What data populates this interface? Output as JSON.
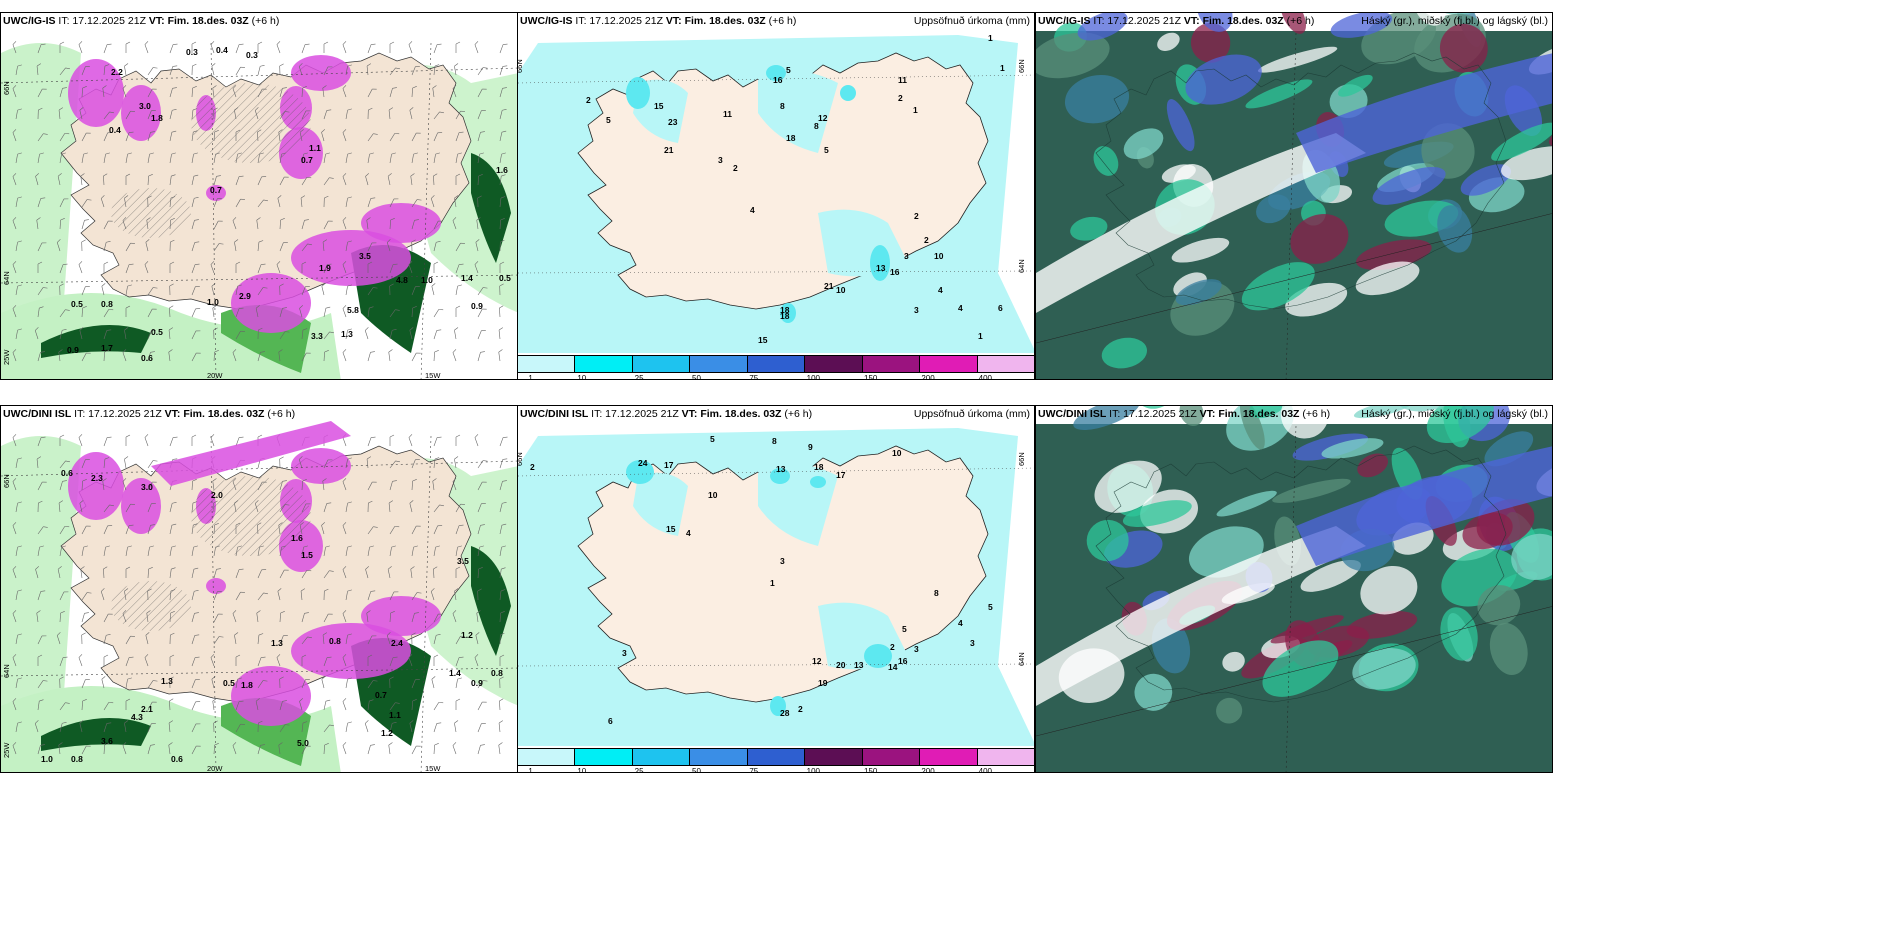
{
  "panels": {
    "p1": {
      "model": "UWC/IG-IS",
      "it": "IT: 17.12.2025 21Z",
      "vt": "VT: Fim. 18.des. 03Z",
      "step": "(+6 h)"
    },
    "p2": {
      "model": "UWC/IG-IS",
      "it": "IT: 17.12.2025 21Z",
      "vt": "VT: Fim. 18.des. 03Z",
      "step": "(+6 h)",
      "right": "Uppsöfnuð úrkoma (mm)"
    },
    "p3": {
      "model": "UWC/IG-IS",
      "it": "IT: 17.12.2025 21Z",
      "vt": "VT: Fim. 18.des. 03Z",
      "step": "(+6 h)",
      "right": "Háský (gr.), miðský (fj.bl.) og lágský (bl.)"
    },
    "p4": {
      "model": "UWC/DINI ISL",
      "it": "IT: 17.12.2025 21Z",
      "vt": "VT: Fim. 18.des. 03Z",
      "step": "(+6 h)"
    },
    "p5": {
      "model": "UWC/DINI ISL",
      "it": "IT: 17.12.2025 21Z",
      "vt": "VT: Fim. 18.des. 03Z",
      "step": "(+6 h)",
      "right": "Uppsöfnuð úrkoma (mm)"
    },
    "p6": {
      "model": "UWC/DINI ISL",
      "it": "IT: 17.12.2025 21Z",
      "vt": "VT: Fim. 18.des. 03Z",
      "step": "(+6 h)",
      "right": "Háský (gr.), miðský (fj.bl.) og lágský (bl.)"
    }
  },
  "axes": {
    "lat66": "66N",
    "lat64": "64N",
    "lon25": "25W",
    "lon20": "20W",
    "lon15": "15W"
  },
  "colorbar": {
    "ticks": [
      "1",
      "10",
      "25",
      "50",
      "75",
      "100",
      "150",
      "200",
      "400"
    ],
    "colors": [
      "#c8f7fa",
      "#00eef5",
      "#1ec3ef",
      "#3a8ee6",
      "#2e5fd0",
      "#5c0e54",
      "#9b137f",
      "#e01cb5",
      "#f0b5ee"
    ]
  },
  "colors": {
    "land": "#f3e4d4",
    "precip_light": "#b8f6f7",
    "precip_mid": "#5de8f0",
    "green_light": "#c4f1c4",
    "green_mid": "#54b654",
    "green_dark": "#0f5a24",
    "magenta": "#d94fe0",
    "cloud_high": "#2f5f53",
    "cloud_mid": "#4d64d8",
    "cloud_low": "#8b1f4a"
  },
  "p1_values": [
    "0.3",
    "0.4",
    "0.3",
    "2.2",
    "3.0",
    "1.8",
    "0.4",
    "0.7",
    "1.1",
    "0.7",
    "1.9",
    "3.5",
    "2.9",
    "5.8",
    "4.8",
    "0.5",
    "0.8",
    "1.0",
    "0.5",
    "0.9",
    "1.7",
    "0.6",
    "3.3",
    "1.3",
    "1.0",
    "1.4",
    "1.6",
    "0.5",
    "0.9"
  ],
  "p2_values": [
    "1",
    "1",
    "2",
    "15",
    "23",
    "21",
    "5",
    "11",
    "16",
    "18",
    "8",
    "12",
    "11",
    "8",
    "5",
    "1",
    "3",
    "2",
    "4",
    "13",
    "18",
    "21",
    "10",
    "16",
    "3",
    "2",
    "4",
    "6",
    "15",
    "18",
    "2",
    "10",
    "4",
    "3",
    "5",
    "2",
    "1"
  ],
  "p4_values": [
    "0.6",
    "2.3",
    "3.0",
    "2.0",
    "1.6",
    "1.5",
    "0.8",
    "2.4",
    "0.5",
    "1.3",
    "1.8",
    "3.5",
    "1.2",
    "1.4",
    "0.9",
    "0.7",
    "1.3",
    "2.1",
    "4.3",
    "3.6",
    "0.8",
    "0.6",
    "5.0",
    "1.1",
    "1.2",
    "0.8",
    "1.0"
  ],
  "p5_values": [
    "5",
    "8",
    "9",
    "2",
    "24",
    "17",
    "10",
    "13",
    "18",
    "17",
    "10",
    "15",
    "4",
    "3",
    "1",
    "2",
    "5",
    "3",
    "12",
    "19",
    "20",
    "13",
    "16",
    "14",
    "8",
    "4",
    "3",
    "5",
    "2",
    "28",
    "6",
    "3"
  ]
}
